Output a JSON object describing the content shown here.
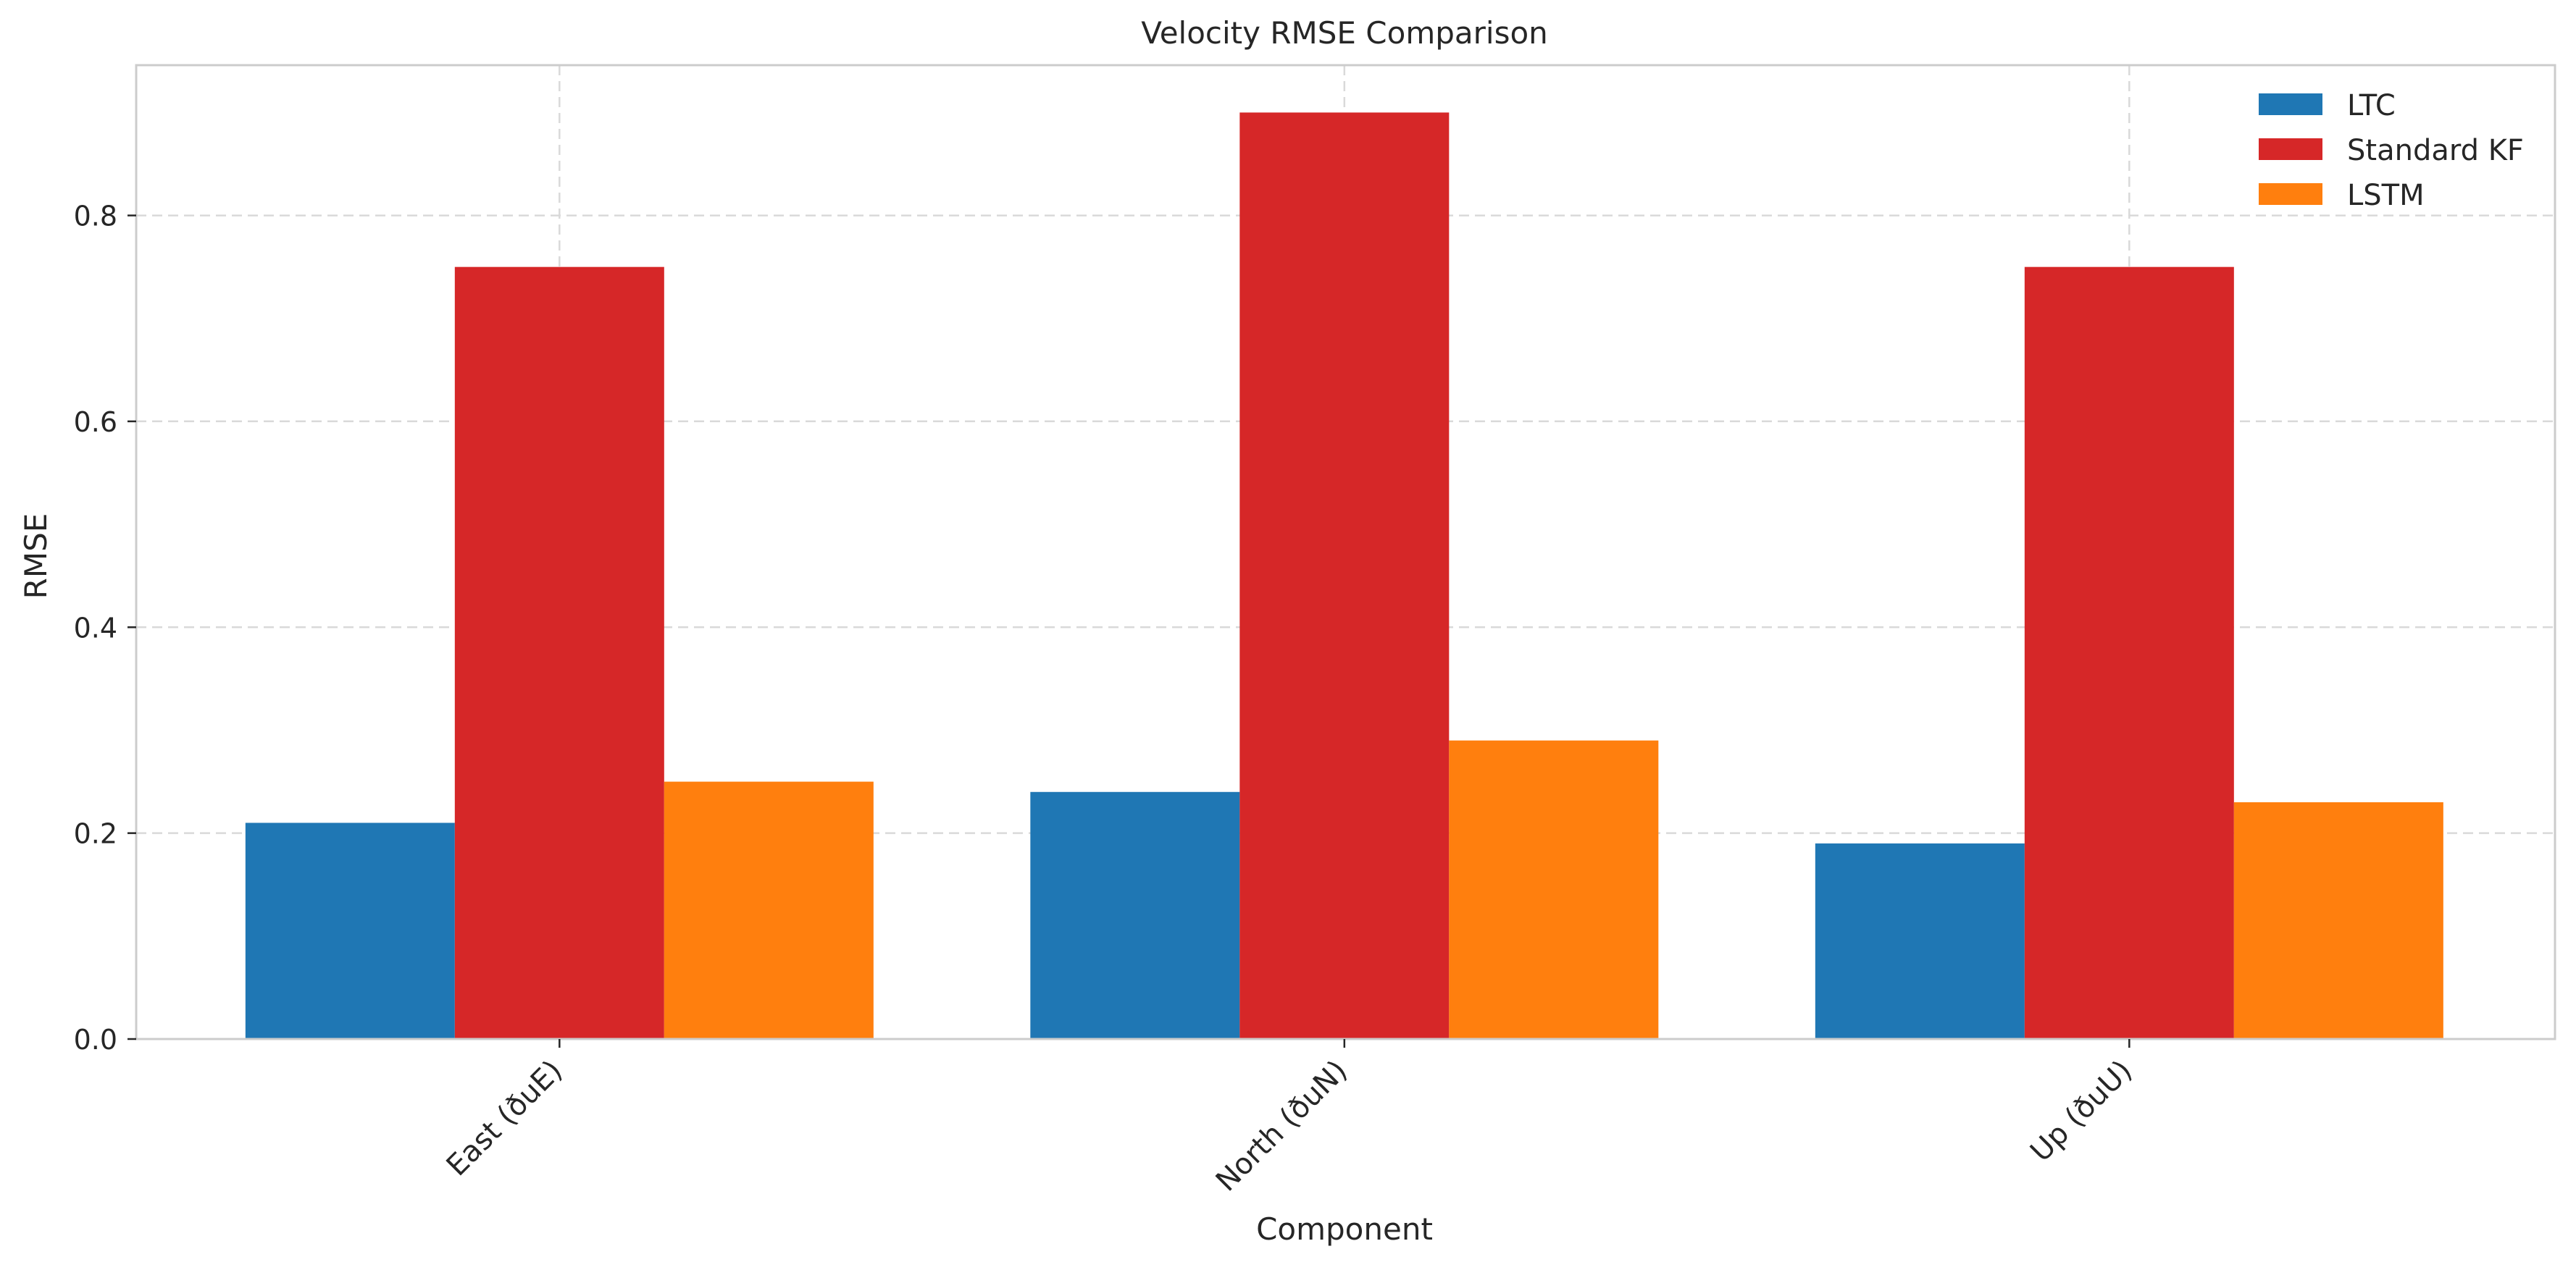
{
  "chart_data": {
    "type": "bar",
    "title": "Velocity RMSE Comparison",
    "xlabel": "Component",
    "ylabel": "RMSE",
    "categories": [
      "East (ðuE)",
      "North (ðuN)",
      "Up (ðuU)"
    ],
    "series": [
      {
        "name": "LTC",
        "color": "#1f77b4",
        "values": [
          0.21,
          0.24,
          0.19
        ]
      },
      {
        "name": "Standard KF",
        "color": "#d62728",
        "values": [
          0.75,
          0.9,
          0.75
        ]
      },
      {
        "name": "LSTM",
        "color": "#ff7f0e",
        "values": [
          0.25,
          0.29,
          0.23
        ]
      }
    ],
    "ylim": [
      0,
      0.946
    ],
    "yticks": [
      0.0,
      0.2,
      0.4,
      0.6,
      0.8
    ],
    "ytick_labels": [
      "0.0",
      "0.2",
      "0.4",
      "0.6",
      "0.8"
    ],
    "grid": true,
    "legend_position": "top-right"
  }
}
